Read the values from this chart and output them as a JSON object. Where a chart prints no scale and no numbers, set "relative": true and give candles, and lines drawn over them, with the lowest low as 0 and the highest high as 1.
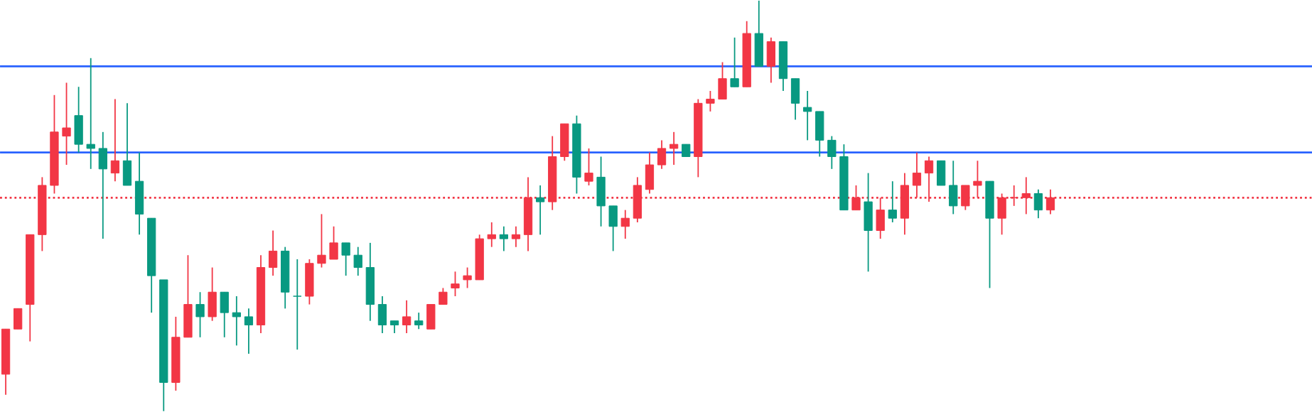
{
  "chart_data": {
    "type": "candlestick",
    "relative": true,
    "categories": [
      null,
      null,
      null,
      null,
      null,
      null,
      null,
      null,
      null,
      null,
      null,
      null,
      null,
      null,
      null,
      null,
      null,
      null,
      null,
      null,
      null,
      null,
      null,
      null,
      null,
      null,
      null,
      null,
      null,
      null,
      null,
      null,
      null,
      null,
      null,
      null,
      null,
      null,
      null,
      null,
      null,
      null,
      null,
      null,
      null,
      null,
      null,
      null,
      null,
      null,
      null,
      null,
      null,
      null,
      null,
      null,
      null,
      null,
      null,
      null,
      null,
      null,
      null,
      null,
      null,
      null,
      null,
      null,
      null,
      null,
      null,
      null,
      null,
      null,
      null,
      null,
      null,
      null,
      null,
      null,
      null,
      null,
      null,
      null,
      null,
      null,
      null
    ],
    "ohlc": [
      [
        0.09,
        0.2,
        0.04,
        0.2
      ],
      [
        0.2,
        0.25,
        0.2,
        0.25
      ],
      [
        0.26,
        0.43,
        0.17,
        0.43
      ],
      [
        0.43,
        0.57,
        0.39,
        0.55
      ],
      [
        0.55,
        0.77,
        0.53,
        0.68
      ],
      [
        0.67,
        0.8,
        0.6,
        0.69
      ],
      [
        0.72,
        0.79,
        0.63,
        0.65
      ],
      [
        0.65,
        0.86,
        0.59,
        0.64
      ],
      [
        0.64,
        0.68,
        0.42,
        0.59
      ],
      [
        0.58,
        0.76,
        0.56,
        0.61
      ],
      [
        0.61,
        0.75,
        0.55,
        0.55
      ],
      [
        0.56,
        0.63,
        0.43,
        0.48
      ],
      [
        0.47,
        0.47,
        0.24,
        0.33
      ],
      [
        0.32,
        0.32,
        0,
        0.07
      ],
      [
        0.07,
        0.23,
        0.05,
        0.18
      ],
      [
        0.18,
        0.38,
        0.18,
        0.26
      ],
      [
        0.26,
        0.29,
        0.18,
        0.23
      ],
      [
        0.23,
        0.35,
        0.22,
        0.29
      ],
      [
        0.29,
        0.29,
        0.18,
        0.24
      ],
      [
        0.24,
        0.28,
        0.16,
        0.23
      ],
      [
        0.23,
        0.25,
        0.14,
        0.21
      ],
      [
        0.21,
        0.38,
        0.19,
        0.35
      ],
      [
        0.35,
        0.44,
        0.33,
        0.39
      ],
      [
        0.39,
        0.4,
        0.25,
        0.29
      ],
      [
        0.28,
        0.37,
        0.15,
        0.28
      ],
      [
        0.28,
        0.37,
        0.26,
        0.36
      ],
      [
        0.36,
        0.48,
        0.35,
        0.38
      ],
      [
        0.37,
        0.45,
        0.37,
        0.41
      ],
      [
        0.41,
        0.41,
        0.33,
        0.38
      ],
      [
        0.38,
        0.4,
        0.33,
        0.35
      ],
      [
        0.35,
        0.41,
        0.22,
        0.26
      ],
      [
        0.26,
        0.28,
        0.19,
        0.21
      ],
      [
        0.22,
        0.22,
        0.19,
        0.21
      ],
      [
        0.21,
        0.27,
        0.19,
        0.23
      ],
      [
        0.22,
        0.24,
        0.2,
        0.21
      ],
      [
        0.2,
        0.26,
        0.2,
        0.26
      ],
      [
        0.26,
        0.3,
        0.26,
        0.29
      ],
      [
        0.3,
        0.34,
        0.28,
        0.31
      ],
      [
        0.32,
        0.35,
        0.3,
        0.33
      ],
      [
        0.32,
        0.43,
        0.32,
        0.42
      ],
      [
        0.42,
        0.46,
        0.4,
        0.43
      ],
      [
        0.43,
        0.45,
        0.39,
        0.42
      ],
      [
        0.42,
        0.45,
        0.4,
        0.43
      ],
      [
        0.43,
        0.57,
        0.39,
        0.52
      ],
      [
        0.52,
        0.55,
        0.43,
        0.51
      ],
      [
        0.51,
        0.67,
        0.49,
        0.62
      ],
      [
        0.62,
        0.7,
        0.61,
        0.7
      ],
      [
        0.7,
        0.72,
        0.53,
        0.57
      ],
      [
        0.56,
        0.64,
        0.55,
        0.58
      ],
      [
        0.57,
        0.62,
        0.45,
        0.5
      ],
      [
        0.5,
        0.5,
        0.39,
        0.45
      ],
      [
        0.45,
        0.49,
        0.42,
        0.47
      ],
      [
        0.47,
        0.57,
        0.46,
        0.55
      ],
      [
        0.54,
        0.63,
        0.53,
        0.6
      ],
      [
        0.6,
        0.66,
        0.59,
        0.64
      ],
      [
        0.64,
        0.68,
        0.6,
        0.65
      ],
      [
        0.65,
        0.65,
        0.62,
        0.62
      ],
      [
        0.62,
        0.76,
        0.57,
        0.75
      ],
      [
        0.75,
        0.78,
        0.73,
        0.76
      ],
      [
        0.76,
        0.85,
        0.76,
        0.81
      ],
      [
        0.81,
        0.91,
        0.79,
        0.79
      ],
      [
        0.79,
        0.95,
        0.79,
        0.92
      ],
      [
        0.92,
        1,
        0.84,
        0.84
      ],
      [
        0.84,
        0.91,
        0.8,
        0.9
      ],
      [
        0.9,
        0.9,
        0.78,
        0.81
      ],
      [
        0.81,
        0.81,
        0.71,
        0.75
      ],
      [
        0.74,
        0.78,
        0.66,
        0.73
      ],
      [
        0.73,
        0.73,
        0.62,
        0.66
      ],
      [
        0.66,
        0.67,
        0.59,
        0.62
      ],
      [
        0.62,
        0.65,
        0.49,
        0.49
      ],
      [
        0.49,
        0.55,
        0.49,
        0.52
      ],
      [
        0.51,
        0.58,
        0.34,
        0.44
      ],
      [
        0.44,
        0.52,
        0.42,
        0.49
      ],
      [
        0.49,
        0.56,
        0.46,
        0.47
      ],
      [
        0.47,
        0.58,
        0.43,
        0.55
      ],
      [
        0.55,
        0.63,
        0.52,
        0.58
      ],
      [
        0.58,
        0.62,
        0.51,
        0.61
      ],
      [
        0.61,
        0.61,
        0.55,
        0.55
      ],
      [
        0.55,
        0.61,
        0.48,
        0.5
      ],
      [
        0.5,
        0.55,
        0.49,
        0.55
      ],
      [
        0.55,
        0.61,
        0.52,
        0.56
      ],
      [
        0.56,
        0.56,
        0.3,
        0.47
      ],
      [
        0.47,
        0.53,
        0.43,
        0.52
      ],
      [
        0.52,
        0.55,
        0.5,
        0.52
      ],
      [
        0.52,
        0.57,
        0.48,
        0.53
      ],
      [
        0.53,
        0.54,
        0.47,
        0.49
      ],
      [
        0.49,
        0.54,
        0.48,
        0.52
      ]
    ],
    "colors": [
      "#f23645",
      "#f23645",
      "#f23645",
      "#f23645",
      "#f23645",
      "#f23645",
      "#089981",
      "#089981",
      "#089981",
      "#f23645",
      "#089981",
      "#089981",
      "#089981",
      "#089981",
      "#f23645",
      "#f23645",
      "#089981",
      "#f23645",
      "#089981",
      "#089981",
      "#089981",
      "#f23645",
      "#f23645",
      "#089981",
      "#089981",
      "#f23645",
      "#f23645",
      "#f23645",
      "#089981",
      "#089981",
      "#089981",
      "#089981",
      "#089981",
      "#f23645",
      "#089981",
      "#f23645",
      "#f23645",
      "#f23645",
      "#f23645",
      "#f23645",
      "#f23645",
      "#089981",
      "#f23645",
      "#f23645",
      "#089981",
      "#f23645",
      "#f23645",
      "#089981",
      "#f23645",
      "#089981",
      "#089981",
      "#f23645",
      "#f23645",
      "#f23645",
      "#f23645",
      "#f23645",
      "#089981",
      "#f23645",
      "#f23645",
      "#f23645",
      "#089981",
      "#f23645",
      "#089981",
      "#f23645",
      "#089981",
      "#089981",
      "#089981",
      "#089981",
      "#089981",
      "#089981",
      "#f23645",
      "#089981",
      "#f23645",
      "#089981",
      "#f23645",
      "#f23645",
      "#f23645",
      "#089981",
      "#089981",
      "#f23645",
      "#f23645",
      "#089981",
      "#f23645",
      "#f23645",
      "#f23645",
      "#089981",
      "#f23645"
    ],
    "ref_lines": [
      {
        "axis": "y",
        "value": 0.84,
        "color": "#2962ff",
        "line_style": "solid"
      },
      {
        "axis": "y",
        "value": 0.63,
        "color": "#2962ff",
        "line_style": "solid"
      },
      {
        "axis": "y",
        "value": 0.52,
        "color": "#f23645",
        "line_style": "dotted"
      }
    ]
  }
}
